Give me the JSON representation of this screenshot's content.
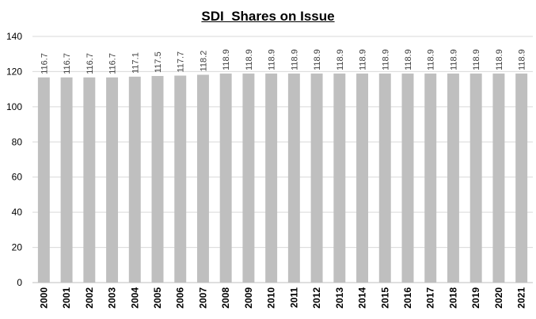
{
  "chart_data": {
    "type": "bar",
    "title": "SDI  Shares on Issue",
    "xlabel": "",
    "ylabel": "",
    "categories": [
      "2000",
      "2001",
      "2002",
      "2003",
      "2004",
      "2005",
      "2006",
      "2007",
      "2008",
      "2009",
      "2010",
      "2011",
      "2012",
      "2013",
      "2014",
      "2015",
      "2016",
      "2017",
      "2018",
      "2019",
      "2020",
      "2021"
    ],
    "values": [
      116.7,
      116.7,
      116.7,
      116.7,
      117.1,
      117.5,
      117.7,
      118.2,
      118.9,
      118.9,
      118.9,
      118.9,
      118.9,
      118.9,
      118.9,
      118.9,
      118.9,
      118.9,
      118.9,
      118.9,
      118.9,
      118.9
    ],
    "data_labels": [
      "116.7",
      "116.7",
      "116.7",
      "116.7",
      "117.1",
      "117.5",
      "117.7",
      "118.2",
      "118.9",
      "118.9",
      "118.9",
      "118.9",
      "118.9",
      "118.9",
      "118.9",
      "118.9",
      "118.9",
      "118.9",
      "118.9",
      "118.9",
      "118.9",
      "118.9"
    ],
    "ylim": [
      0,
      140
    ],
    "yticks": [
      "0",
      "20",
      "40",
      "60",
      "80",
      "100",
      "120",
      "140"
    ],
    "grid": true,
    "legend": "none",
    "colors": {
      "bar": "#bfbfbf",
      "grid": "#d9d9d9",
      "axis": "#bfbfbf"
    }
  }
}
